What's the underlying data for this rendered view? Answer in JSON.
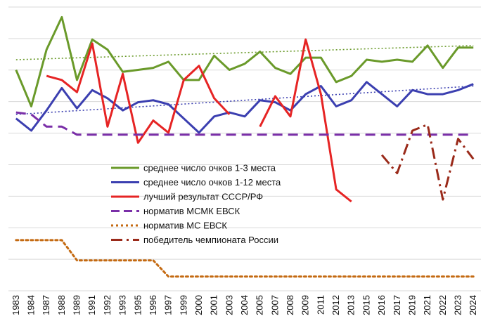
{
  "chart_data": {
    "type": "line",
    "title": "",
    "xlabel": "",
    "ylabel": "",
    "grid": "horizontal",
    "legend_position": "center",
    "x": [
      "1983",
      "1984",
      "1987",
      "1988",
      "1989",
      "1991",
      "1992",
      "1993",
      "1995",
      "1996",
      "1997",
      "1999",
      "2000",
      "2001",
      "2003",
      "2004",
      "2005",
      "2007",
      "2008",
      "2009",
      "2011",
      "2012",
      "2013",
      "2015",
      "2016",
      "2017",
      "2019",
      "2021",
      "2022",
      "2023",
      "2024"
    ],
    "series": [
      {
        "name": "среднее число очков 1-3 места",
        "color": "#6a9a2a",
        "style": "solid",
        "values": [
          7.4,
          5.6,
          8.4,
          10.0,
          6.9,
          8.9,
          8.4,
          7.3,
          7.4,
          7.5,
          7.8,
          6.9,
          6.9,
          8.1,
          7.4,
          7.7,
          8.3,
          7.5,
          7.2,
          8.0,
          8.0,
          6.8,
          7.1,
          7.9,
          7.8,
          7.9,
          7.8,
          8.6,
          7.5,
          8.5,
          8.5
        ],
        "gap_after": []
      },
      {
        "name": "среднее число очков 1-12 места",
        "color": "#3b3fb0",
        "style": "solid",
        "values": [
          5.0,
          4.4,
          5.4,
          6.5,
          5.5,
          6.4,
          6.0,
          5.4,
          5.8,
          5.9,
          5.7,
          5.0,
          4.3,
          5.1,
          5.3,
          5.1,
          5.9,
          5.8,
          5.4,
          6.2,
          6.6,
          5.6,
          5.9,
          6.8,
          6.2,
          5.6,
          6.4,
          6.2,
          6.2,
          6.4,
          6.7
        ],
        "gap_after": []
      },
      {
        "name": "лучший результат СССР/РФ",
        "color": "#e62424",
        "style": "solid",
        "values": [
          null,
          null,
          7.1,
          6.9,
          6.3,
          8.7,
          4.6,
          7.2,
          3.8,
          4.9,
          4.3,
          6.9,
          7.6,
          6.0,
          5.2,
          null,
          4.6,
          6.1,
          5.1,
          8.9,
          6.2,
          1.5,
          0.9,
          null,
          null,
          null,
          null,
          null,
          null,
          null,
          null
        ],
        "gap_after": []
      },
      {
        "name": "норматив МСМК ЕВСК",
        "color": "#7a2fa8",
        "style": "dashed",
        "values": [
          5.3,
          5.2,
          4.6,
          4.6,
          4.2,
          4.2,
          4.2,
          4.2,
          4.2,
          4.2,
          4.2,
          4.2,
          4.2,
          4.2,
          4.2,
          4.2,
          4.2,
          4.2,
          4.2,
          4.2,
          4.2,
          4.2,
          4.2,
          4.2,
          4.2,
          4.2,
          4.2,
          4.2,
          4.2,
          4.2,
          4.2
        ],
        "gap_after": []
      },
      {
        "name": "норматив МС ЕВСК",
        "color": "#c46a12",
        "style": "dotted",
        "values": [
          -1.0,
          -1.0,
          -1.0,
          -1.0,
          -2.0,
          -2.0,
          -2.0,
          -2.0,
          -2.0,
          -2.0,
          -2.8,
          -2.8,
          -2.8,
          -2.8,
          -2.8,
          -2.8,
          -2.8,
          -2.8,
          -2.8,
          -2.8,
          -2.8,
          -2.8,
          -2.8,
          -2.8,
          -2.8,
          -2.8,
          -2.8,
          -2.8,
          -2.8,
          -2.8,
          -2.8
        ],
        "gap_after": []
      },
      {
        "name": "победитель чемпионата России",
        "color": "#9a2a1a",
        "style": "dashdot",
        "values": [
          null,
          null,
          null,
          null,
          null,
          null,
          null,
          null,
          null,
          null,
          null,
          null,
          null,
          null,
          null,
          null,
          null,
          null,
          null,
          null,
          null,
          null,
          null,
          null,
          3.2,
          2.3,
          4.4,
          4.7,
          1.0,
          4.0,
          3.0
        ],
        "gap_after": []
      }
    ],
    "trendlines": [
      {
        "series": 0,
        "color": "#6a9a2a",
        "start": 7.9,
        "end": 8.6
      },
      {
        "series": 1,
        "color": "#3b3fb0",
        "start": 5.2,
        "end": 6.6
      }
    ],
    "ylim": [
      -3.5,
      10.5
    ]
  }
}
